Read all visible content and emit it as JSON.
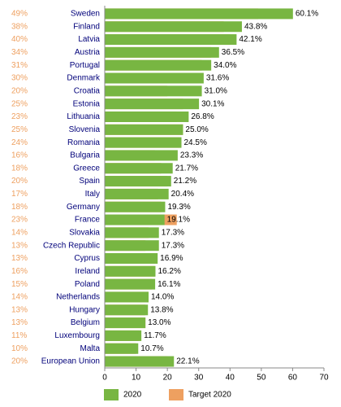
{
  "chart_data": {
    "type": "bar",
    "orientation": "horizontal",
    "categories": [
      "Sweden",
      "Finland",
      "Latvia",
      "Austria",
      "Portugal",
      "Denmark",
      "Croatia",
      "Estonia",
      "Lithuania",
      "Slovenia",
      "Romania",
      "Bulgaria",
      "Greece",
      "Spain",
      "Italy",
      "Germany",
      "France",
      "Slovakia",
      "Czech Republic",
      "Cyprus",
      "Ireland",
      "Poland",
      "Netherlands",
      "Hungary",
      "Belgium",
      "Luxembourg",
      "Malta",
      "European Union"
    ],
    "series": [
      {
        "name": "2020",
        "color": "#78b642",
        "values": [
          60.1,
          43.8,
          42.1,
          36.5,
          34.0,
          31.6,
          31.0,
          30.1,
          26.8,
          25.0,
          24.5,
          23.3,
          21.7,
          21.2,
          20.4,
          19.3,
          19.1,
          17.3,
          17.3,
          16.9,
          16.2,
          16.1,
          14.0,
          13.8,
          13.0,
          11.7,
          10.7,
          22.1
        ],
        "value_labels": [
          "60.1%",
          "43.8%",
          "42.1%",
          "36.5%",
          "34.0%",
          "31.6%",
          "31.0%",
          "30.1%",
          "26.8%",
          "25.0%",
          "24.5%",
          "23.3%",
          "21.7%",
          "21.2%",
          "20.4%",
          "19.3%",
          "19.1%",
          "17.3%",
          "17.3%",
          "16.9%",
          "16.2%",
          "16.1%",
          "14.0%",
          "13.8%",
          "13.0%",
          "11.7%",
          "10.7%",
          "22.1%"
        ]
      },
      {
        "name": "Target 2020",
        "color": "#eea060",
        "values": [
          49,
          38,
          40,
          34,
          31,
          30,
          20,
          25,
          23,
          25,
          24,
          16,
          18,
          20,
          17,
          18,
          23,
          14,
          13,
          13,
          16,
          15,
          14,
          13,
          13,
          11,
          10,
          20
        ],
        "value_labels": [
          "49%",
          "38%",
          "40%",
          "34%",
          "31%",
          "30%",
          "20%",
          "25%",
          "23%",
          "25%",
          "24%",
          "16%",
          "18%",
          "20%",
          "17%",
          "18%",
          "23%",
          "14%",
          "13%",
          "13%",
          "16%",
          "15%",
          "14%",
          "13%",
          "13%",
          "11%",
          "10%",
          "20%"
        ]
      }
    ],
    "xlim": [
      0,
      70
    ],
    "xticks": [
      0,
      10,
      20,
      30,
      40,
      50,
      60,
      70
    ],
    "legend": "bottom"
  }
}
